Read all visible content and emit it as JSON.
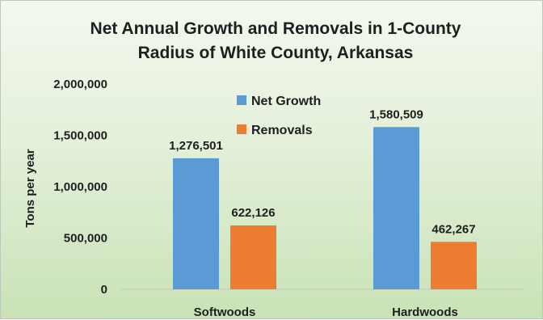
{
  "chart_data": {
    "type": "bar",
    "title_line1": "Net Annual Growth and Removals in 1-County",
    "title_line2": "Radius of White County, Arkansas",
    "xlabel": "",
    "ylabel": "Tons per year",
    "categories": [
      "Softwoods",
      "Hardwoods"
    ],
    "series": [
      {
        "name": "Net Growth",
        "color": "#5b9bd5",
        "values": [
          1276501,
          1580509
        ],
        "labels": [
          "1,276,501",
          "1,580,509"
        ]
      },
      {
        "name": "Removals",
        "color": "#ed7d31",
        "values": [
          622126,
          462267
        ],
        "labels": [
          "622,126",
          "462,267"
        ]
      }
    ],
    "ylim": [
      0,
      2000000
    ],
    "yticks": [
      0,
      500000,
      1000000,
      1500000,
      2000000
    ],
    "ytick_labels": [
      "0",
      "500,000",
      "1,000,000",
      "1,500,000",
      "2,000,000"
    ],
    "grid": false,
    "legend_position": "top-center",
    "data_labels": true
  }
}
